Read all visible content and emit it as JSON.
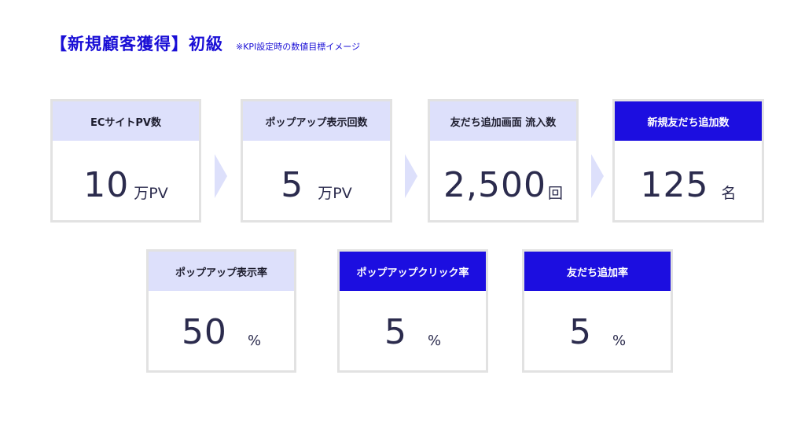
{
  "title": "【新規顧客獲得】初級",
  "note": "※KPI設定時の数値目標イメージ",
  "colors": {
    "accent": "#1c0ee0",
    "light": "#dde0fb",
    "border": "#e2e2e2",
    "text": "#2b2b4d"
  },
  "row1": [
    {
      "label": "ECサイトPV数",
      "value": "10",
      "unit": "万PV"
    },
    {
      "label": "ポップアップ表示回数",
      "value": "5",
      "unit": "万PV"
    },
    {
      "label": "友だち追加画面 流入数",
      "value": "2,500",
      "unit": "回"
    },
    {
      "label": "新規友だち追加数",
      "value": "125",
      "unit": "名"
    }
  ],
  "row2": [
    {
      "label": "ポップアップ表示率",
      "value": "50",
      "unit": "%"
    },
    {
      "label": "ポップアップクリック率",
      "value": "5",
      "unit": "%"
    },
    {
      "label": "友だち追加率",
      "value": "5",
      "unit": "%"
    }
  ]
}
